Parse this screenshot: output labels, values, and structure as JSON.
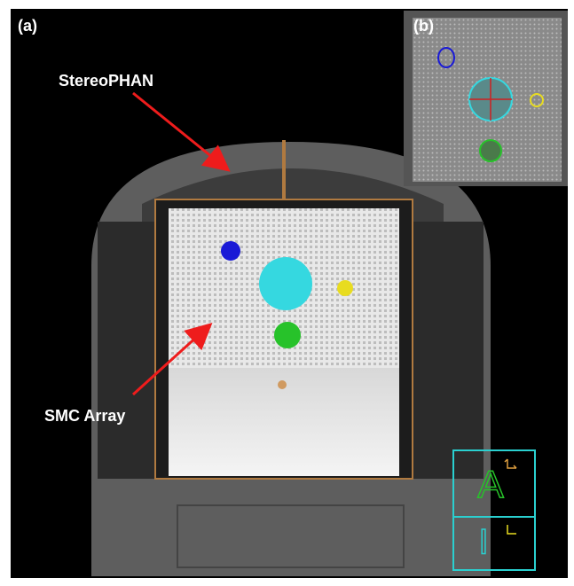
{
  "panels": {
    "a": {
      "label": "(a)"
    },
    "b": {
      "label": "(b)"
    }
  },
  "annotations": [
    {
      "text": "StereoPHAN"
    },
    {
      "text": "SMC Array"
    }
  ],
  "orientation": [
    {
      "letter": "A"
    },
    {
      "letter": "I"
    }
  ]
}
